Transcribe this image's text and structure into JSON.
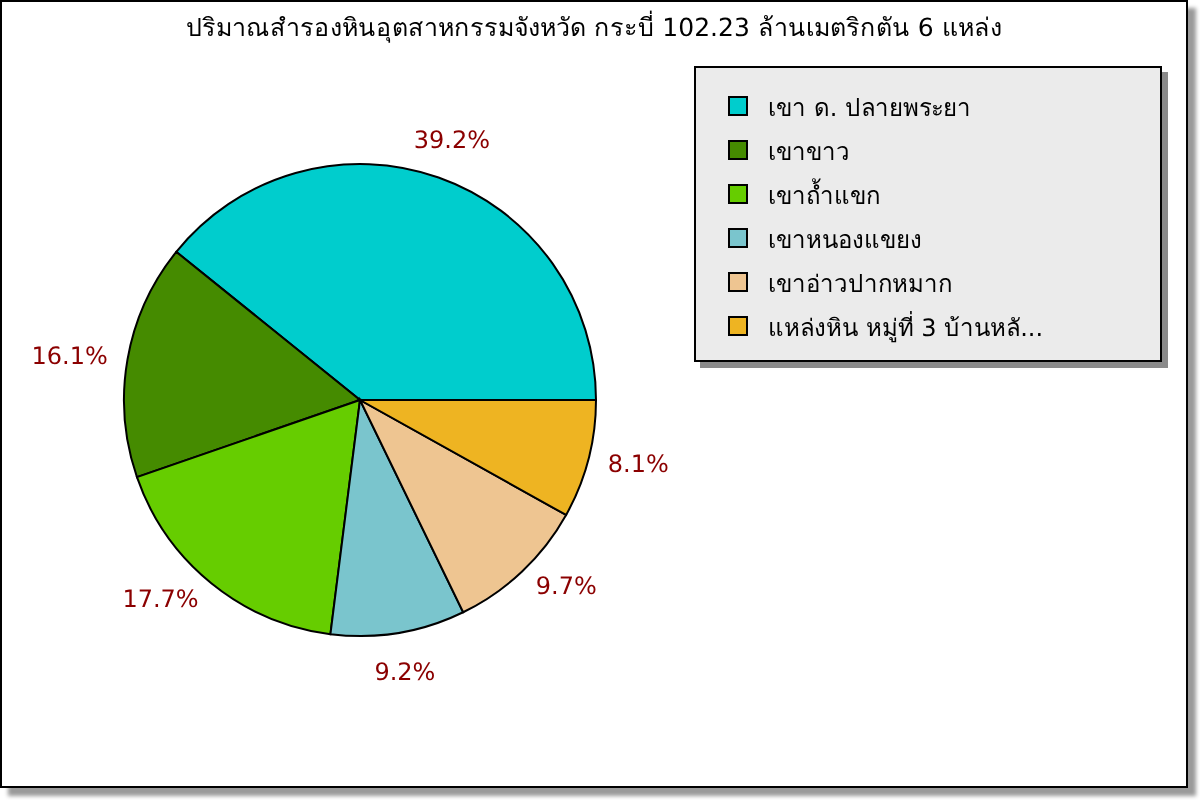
{
  "chart_data": {
    "type": "pie",
    "title": "ปริมาณสำรองหินอุตสาหกรรมจังหวัด กระบี่ 102.23 ล้านเมตริกตัน 6 แหล่ง",
    "categories": [
      "เขา ด. ปลายพระยา",
      "เขาขาว",
      "เขาถ้ำแขก",
      "เขาหนองแขยง",
      "เขาอ่าวปากหมาก",
      "แหล่งหิน หมู่ที่ 3 บ้านหลั..."
    ],
    "values": [
      39.2,
      16.1,
      17.7,
      9.2,
      9.7,
      8.1
    ],
    "colors": [
      "#00cdcd",
      "#458b00",
      "#66cd00",
      "#7ac5cd",
      "#eec591",
      "#eeb422"
    ],
    "value_labels": [
      "39.2%",
      "16.1%",
      "17.7%",
      "9.2%",
      "9.7%",
      "8.1%"
    ],
    "legend": "top right"
  }
}
